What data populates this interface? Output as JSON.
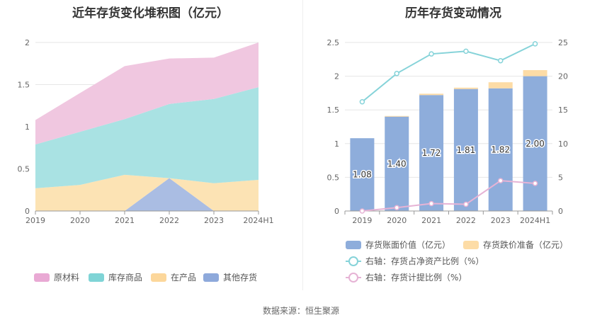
{
  "source": "数据来源：恒生聚源",
  "chart_data": [
    {
      "type": "area",
      "stacked": true,
      "title": "近年存货变化堆积图（亿元）",
      "categories": [
        "2019",
        "2020",
        "2021",
        "2022",
        "2023",
        "2024H1"
      ],
      "ylim": [
        0,
        2
      ],
      "yticks": [
        "0",
        "0.5",
        "1",
        "1.5",
        "2"
      ],
      "grid": true,
      "legend_position": "bottom",
      "series": [
        {
          "name": "其他存货",
          "color": "#aabde3",
          "values": [
            0,
            0,
            0,
            0.39,
            0,
            0
          ]
        },
        {
          "name": "在产品",
          "color": "#fce3b4",
          "values": [
            0.27,
            0.31,
            0.43,
            0,
            0.33,
            0.37
          ]
        },
        {
          "name": "库存商品",
          "color": "#a9e2e3",
          "values": [
            0.52,
            0.63,
            0.66,
            0.88,
            1.0,
            1.1
          ]
        },
        {
          "name": "原材料",
          "color": "#f0c7e0",
          "values": [
            0.29,
            0.46,
            0.63,
            0.54,
            0.49,
            0.53
          ]
        }
      ],
      "legend": [
        {
          "name": "原材料",
          "color": "#e9a9d4"
        },
        {
          "name": "库存商品",
          "color": "#7fd4d6"
        },
        {
          "name": "在产品",
          "color": "#fcd79b"
        },
        {
          "name": "其他存货",
          "color": "#8ea9db"
        }
      ]
    },
    {
      "type": "bar",
      "title": "历年存货变动情况",
      "categories": [
        "2019",
        "2020",
        "2021",
        "2022",
        "2023",
        "2024H1"
      ],
      "ylim_left": [
        0,
        2.5
      ],
      "yticks_left": [
        "0",
        "0.5",
        "1",
        "1.5",
        "2",
        "2.5"
      ],
      "ylim_right": [
        0,
        25
      ],
      "yticks_right": [
        "0",
        "5",
        "10",
        "15",
        "20",
        "25"
      ],
      "grid": true,
      "legend_position": "bottom",
      "bar_series": [
        {
          "name": "存货账面价值（亿元）",
          "color": "#8eaddb",
          "values": [
            1.08,
            1.4,
            1.72,
            1.81,
            1.82,
            2.0
          ],
          "labels": [
            "1.08",
            "1.40",
            "1.72",
            "1.81",
            "1.82",
            "2.00"
          ]
        },
        {
          "name": "存货跌价准备（亿元）",
          "color": "#fddca6",
          "values": [
            0,
            0.01,
            0.02,
            0.02,
            0.09,
            0.09
          ]
        }
      ],
      "line_series": [
        {
          "name": "右轴：存货占净资产比例（%）",
          "color": "#86d3d9",
          "values": [
            16.2,
            20.4,
            23.3,
            23.7,
            22.3,
            24.8
          ]
        },
        {
          "name": "右轴：存货计提比例（%）",
          "color": "#e6b3d5",
          "values": [
            0,
            0.5,
            1.1,
            1.0,
            4.5,
            4.1
          ]
        }
      ]
    }
  ]
}
